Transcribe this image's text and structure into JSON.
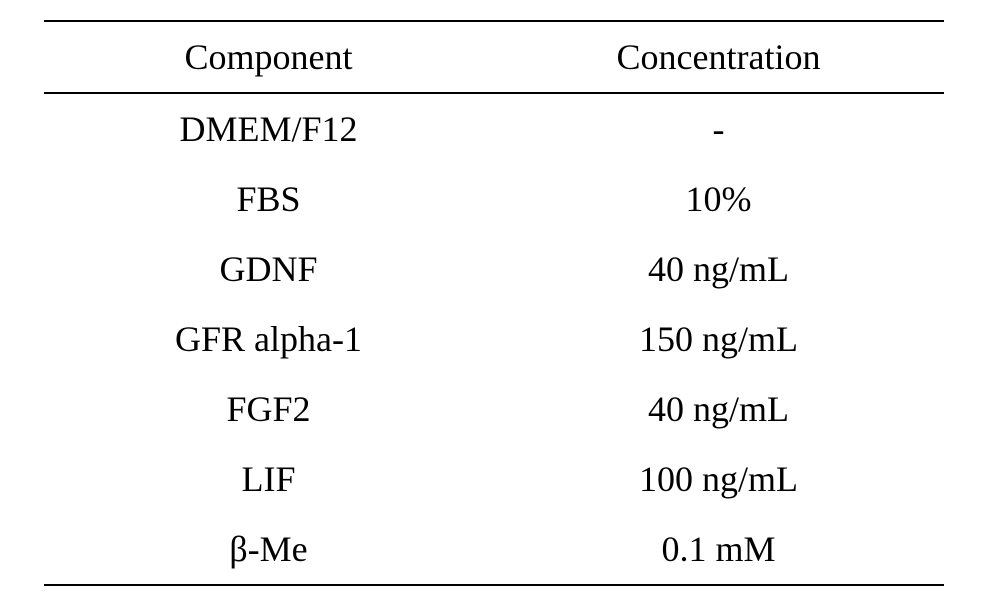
{
  "table": {
    "columns": [
      "Component",
      "Concentration"
    ],
    "rows": [
      [
        "DMEM/F12",
        "-"
      ],
      [
        "FBS",
        "10%"
      ],
      [
        "GDNF",
        "40 ng/mL"
      ],
      [
        "GFR alpha-1",
        "150 ng/mL"
      ],
      [
        "FGF2",
        "40 ng/mL"
      ],
      [
        "LIF",
        "100 ng/mL"
      ],
      [
        "β-Me",
        "0.1 mM"
      ]
    ],
    "header_fontsize": 36,
    "cell_fontsize": 36,
    "font_family": "Times New Roman",
    "border_color": "#000000",
    "border_width": 2,
    "background_color": "#ffffff",
    "text_color": "#000000",
    "column_widths": [
      "50%",
      "50%"
    ],
    "alignment": "center"
  }
}
